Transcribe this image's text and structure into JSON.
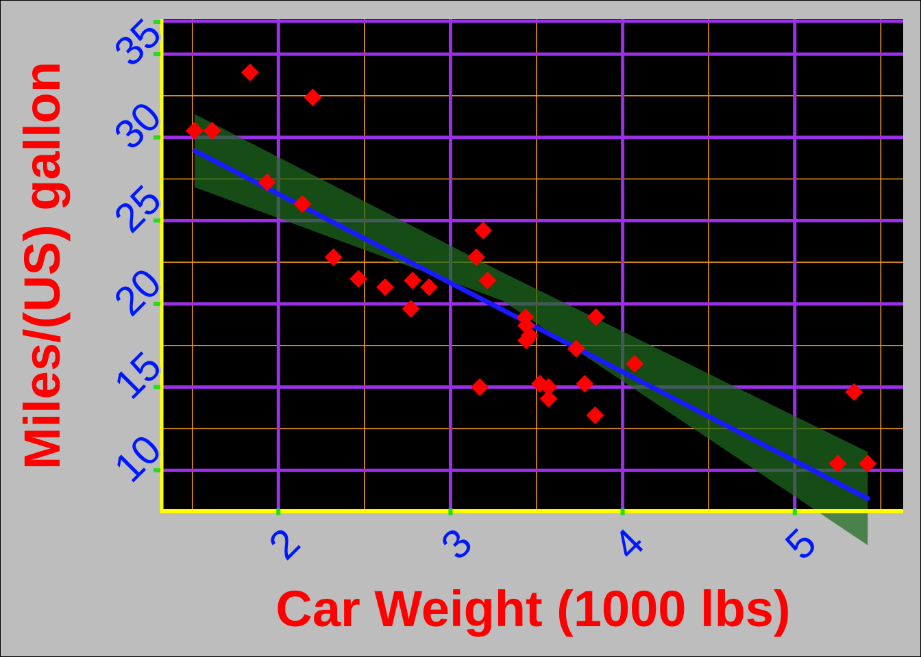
{
  "chart_data": {
    "type": "scatter",
    "xlabel": "Car Weight (1000 lbs)",
    "ylabel": "Miles/(US) gallon",
    "xlim": [
      1.33,
      5.63
    ],
    "ylim": [
      7.5,
      37.1
    ],
    "x_major_ticks": [
      2,
      3,
      4,
      5
    ],
    "y_major_ticks": [
      10,
      15,
      20,
      25,
      30,
      35
    ],
    "x_minor_grid": [
      1.5,
      2.5,
      3.5,
      4.5,
      5.5
    ],
    "y_minor_grid": [
      12.5,
      17.5,
      22.5,
      27.5,
      32.5
    ],
    "tick_labels_x": [
      "2",
      "3",
      "4",
      "5"
    ],
    "tick_labels_y": [
      "10",
      "15",
      "20",
      "25",
      "30",
      "35"
    ],
    "points": [
      {
        "x": 1.513,
        "y": 30.4
      },
      {
        "x": 1.615,
        "y": 30.4
      },
      {
        "x": 1.835,
        "y": 33.9
      },
      {
        "x": 1.935,
        "y": 27.3
      },
      {
        "x": 2.14,
        "y": 26.0
      },
      {
        "x": 2.2,
        "y": 32.4
      },
      {
        "x": 2.32,
        "y": 22.8
      },
      {
        "x": 2.465,
        "y": 21.5
      },
      {
        "x": 2.62,
        "y": 21.0
      },
      {
        "x": 2.77,
        "y": 19.7
      },
      {
        "x": 2.78,
        "y": 21.4
      },
      {
        "x": 2.875,
        "y": 21.0
      },
      {
        "x": 3.15,
        "y": 22.8
      },
      {
        "x": 3.17,
        "y": 15.0
      },
      {
        "x": 3.19,
        "y": 24.4
      },
      {
        "x": 3.215,
        "y": 21.4
      },
      {
        "x": 3.435,
        "y": 19.2
      },
      {
        "x": 3.44,
        "y": 18.7
      },
      {
        "x": 3.44,
        "y": 17.8
      },
      {
        "x": 3.46,
        "y": 18.1
      },
      {
        "x": 3.52,
        "y": 15.2
      },
      {
        "x": 3.57,
        "y": 14.3
      },
      {
        "x": 3.57,
        "y": 15.0
      },
      {
        "x": 3.73,
        "y": 17.3
      },
      {
        "x": 3.78,
        "y": 15.2
      },
      {
        "x": 3.84,
        "y": 13.3
      },
      {
        "x": 3.845,
        "y": 19.2
      },
      {
        "x": 4.07,
        "y": 16.4
      },
      {
        "x": 5.25,
        "y": 10.4
      },
      {
        "x": 5.345,
        "y": 14.7
      },
      {
        "x": 5.424,
        "y": 10.4
      }
    ],
    "fit_line": {
      "x": [
        1.513,
        5.424
      ],
      "y": [
        29.2,
        8.3
      ]
    },
    "confidence_band": {
      "x": [
        1.513,
        3.3,
        5.424
      ],
      "lower": [
        27.0,
        20.2,
        5.5
      ],
      "upper": [
        31.4,
        21.9,
        11.1
      ]
    },
    "grid": true,
    "colors": {
      "background": "#bdbdbd",
      "plot_background": "#000000",
      "major_grid": "#9b30e8",
      "minor_grid": "#ff9f1a",
      "axis_line": "#ffff00",
      "tick_marks": "#22dd22",
      "tick_labels": "#0018ff",
      "axis_titles": "#ff0000",
      "points": "#ff0000",
      "fit_line": "#1a1aff",
      "band": "#1f6b1f"
    }
  }
}
